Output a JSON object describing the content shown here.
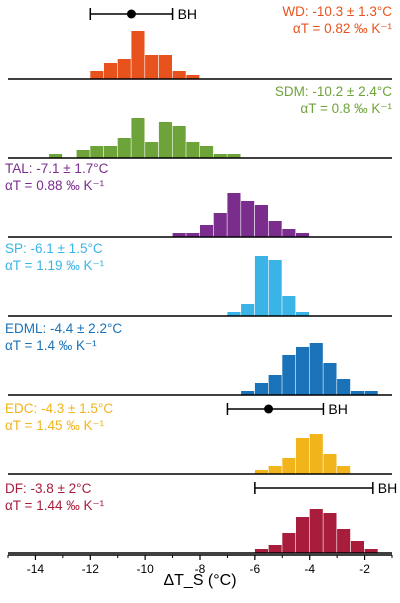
{
  "chart_data": {
    "type": "histogram",
    "xlabel": "ΔT_S (°C)",
    "xlim": [
      -15,
      -1
    ],
    "xticks": [
      -14,
      -12,
      -10,
      -8,
      -6,
      -4,
      -2
    ],
    "bin_width": 0.5,
    "panels": [
      {
        "id": "wd",
        "line1": "WD: -10.3 ± 1.3°C",
        "line2": "αT = 0.82 ‰ K⁻¹",
        "color": "#e8531d",
        "align": "right",
        "bins": [
          [
            -12,
            2
          ],
          [
            -11.5,
            4
          ],
          [
            -11,
            5
          ],
          [
            -10.5,
            12
          ],
          [
            -10,
            6
          ],
          [
            -9.5,
            6
          ],
          [
            -9,
            2
          ],
          [
            -8.5,
            1
          ]
        ],
        "bh": {
          "label": "BH",
          "center": -10.5,
          "min": -12,
          "max": -9
        }
      },
      {
        "id": "sdm",
        "line1": "SDM: -10.2 ± 2.4°C",
        "line2": "αT = 0.8 ‰ K⁻¹",
        "color": "#6ea339",
        "align": "right",
        "bins": [
          [
            -13.5,
            1
          ],
          [
            -12.5,
            2
          ],
          [
            -12,
            3
          ],
          [
            -11.5,
            3
          ],
          [
            -11,
            5
          ],
          [
            -10.5,
            10
          ],
          [
            -10,
            4
          ],
          [
            -9.5,
            9
          ],
          [
            -9,
            8
          ],
          [
            -8.5,
            4
          ],
          [
            -8,
            3
          ],
          [
            -7.5,
            1
          ],
          [
            -7,
            1
          ]
        ]
      },
      {
        "id": "tal",
        "line1": "TAL: -7.1 ± 1.7°C",
        "line2": "αT = 0.88 ‰ K⁻¹",
        "color": "#7b2d8e",
        "align": "left",
        "bins": [
          [
            -9,
            1
          ],
          [
            -8.5,
            1
          ],
          [
            -8,
            3
          ],
          [
            -7.5,
            6
          ],
          [
            -7,
            11
          ],
          [
            -6.5,
            9
          ],
          [
            -6,
            8
          ],
          [
            -5.5,
            4
          ],
          [
            -5,
            2
          ],
          [
            -4.5,
            1
          ]
        ]
      },
      {
        "id": "sp",
        "line1": "SP: -6.1 ± 1.5°C",
        "line2": "αT = 1.19 ‰ K⁻¹",
        "color": "#3ab4e6",
        "align": "left",
        "bins": [
          [
            -7,
            1
          ],
          [
            -6.5,
            3
          ],
          [
            -6,
            15
          ],
          [
            -5.5,
            14
          ],
          [
            -5,
            5
          ],
          [
            -4.5,
            1
          ]
        ]
      },
      {
        "id": "edml",
        "line1": "EDML: -4.4 ± 2.2°C",
        "line2": "αT = 1.4 ‰ K⁻¹",
        "color": "#1a72b8",
        "align": "left",
        "bins": [
          [
            -6.5,
            1
          ],
          [
            -6,
            3
          ],
          [
            -5.5,
            5
          ],
          [
            -5,
            10
          ],
          [
            -4.5,
            12
          ],
          [
            -4,
            13
          ],
          [
            -3.5,
            8
          ],
          [
            -3,
            4
          ],
          [
            -2.5,
            1
          ],
          [
            -2,
            1
          ]
        ],
        "note": "EDML"
      },
      {
        "id": "edc",
        "line1": "EDC: -4.3 ± 1.5°C",
        "line2": "αT = 1.45 ‰ K⁻¹",
        "color": "#f2b41b",
        "align": "left",
        "bins": [
          [
            -6,
            1
          ],
          [
            -5.5,
            2
          ],
          [
            -5,
            4
          ],
          [
            -4.5,
            9
          ],
          [
            -4,
            10
          ],
          [
            -3.5,
            5
          ],
          [
            -3,
            2
          ]
        ],
        "bh": {
          "label": "BH",
          "center": -5.5,
          "min": -7,
          "max": -3.5
        }
      },
      {
        "id": "df",
        "line1": "DF: -3.8 ± 2°C",
        "line2": "αT = 1.44 ‰ K⁻¹",
        "color": "#a81c3c",
        "align": "left",
        "bins": [
          [
            -6,
            1
          ],
          [
            -5.5,
            2
          ],
          [
            -5,
            5
          ],
          [
            -4.5,
            9
          ],
          [
            -4,
            11
          ],
          [
            -3.5,
            10
          ],
          [
            -3,
            6
          ],
          [
            -2.5,
            3
          ],
          [
            -2,
            1
          ]
        ],
        "bh": {
          "label": "BH",
          "min": -6,
          "max": -1.7
        }
      }
    ]
  }
}
